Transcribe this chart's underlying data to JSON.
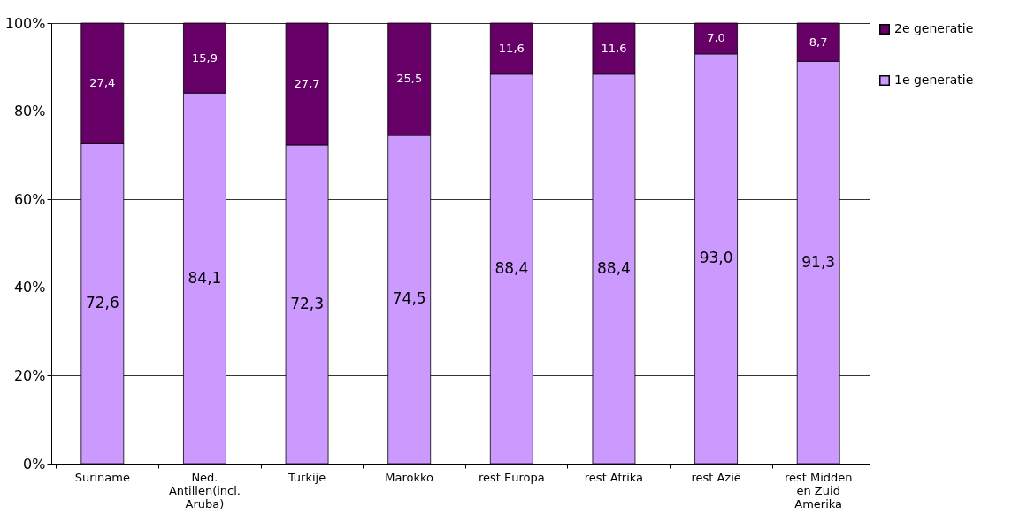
{
  "chart_data": {
    "type": "bar",
    "stacked": true,
    "categories": [
      "Suriname",
      "Ned. Antillen(incl. Aruba)",
      "Turkije",
      "Marokko",
      "rest Europa",
      "rest Afrika",
      "rest Azië",
      "rest Midden en Zuid Amerika"
    ],
    "series": [
      {
        "name": "1e generatie",
        "color": "#cc99ff",
        "values": [
          72.6,
          84.1,
          72.3,
          74.5,
          88.4,
          88.4,
          93.0,
          91.3
        ],
        "value_labels": [
          "72,6",
          "84,1",
          "72,3",
          "74,5",
          "88,4",
          "88,4",
          "93,0",
          "91,3"
        ]
      },
      {
        "name": "2e generatie",
        "color": "#660066",
        "values": [
          27.4,
          15.9,
          27.7,
          25.5,
          11.6,
          11.6,
          7.0,
          8.7
        ],
        "value_labels": [
          "27,4",
          "15,9",
          "27,7",
          "25,5",
          "11,6",
          "11,6",
          "7,0",
          "8,7"
        ]
      }
    ],
    "ylim": [
      0,
      100
    ],
    "yticks": [
      {
        "value": 0,
        "label": "0%"
      },
      {
        "value": 20,
        "label": "20%"
      },
      {
        "value": 40,
        "label": "40%"
      },
      {
        "value": 60,
        "label": "60%"
      },
      {
        "value": 80,
        "label": "80%"
      },
      {
        "value": 100,
        "label": "100%"
      }
    ],
    "grid": "y",
    "legend": "right"
  }
}
